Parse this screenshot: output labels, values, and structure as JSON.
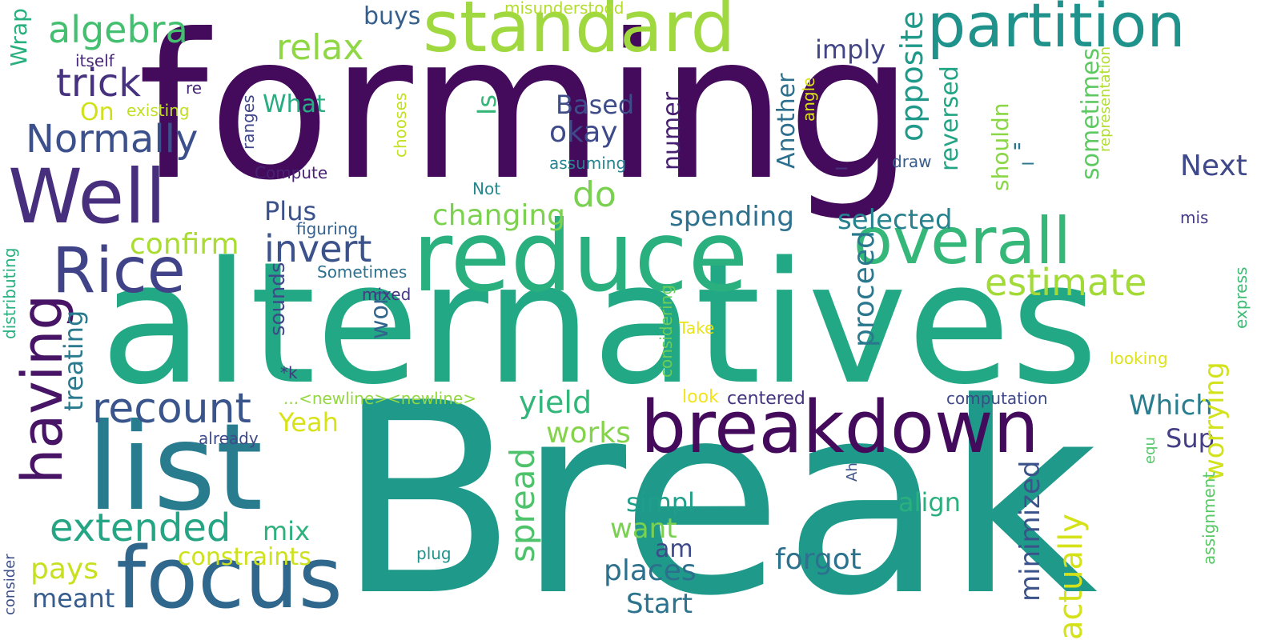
{
  "words": [
    {
      "text": "forming",
      "color": "#440b5c",
      "vertical": false
    },
    {
      "text": "Break",
      "color": "#1f9a8a",
      "vertical": false
    },
    {
      "text": "alternatives",
      "color": "#22a884",
      "vertical": false
    },
    {
      "text": "reduce",
      "color": "#2ab07f",
      "vertical": false
    },
    {
      "text": "breakdown",
      "color": "#440b5c",
      "vertical": false
    },
    {
      "text": "standard",
      "color": "#9fd83f",
      "vertical": false
    },
    {
      "text": "list",
      "color": "#297b8e",
      "vertical": false
    },
    {
      "text": "Well",
      "color": "#472f7d",
      "vertical": false
    },
    {
      "text": "partition",
      "color": "#20928c",
      "vertical": false
    },
    {
      "text": "overall",
      "color": "#35b779",
      "vertical": false
    },
    {
      "text": "focus",
      "color": "#30678d",
      "vertical": false
    },
    {
      "text": "Rice",
      "color": "#404387",
      "vertical": false
    },
    {
      "text": "having",
      "color": "#471466",
      "vertical": true
    },
    {
      "text": "extended",
      "color": "#25a584",
      "vertical": false
    },
    {
      "text": "recount",
      "color": "#39558c",
      "vertical": false
    },
    {
      "text": "estimate",
      "color": "#a2da37",
      "vertical": false
    },
    {
      "text": "algebra",
      "color": "#44bf70",
      "vertical": false
    },
    {
      "text": "Normally",
      "color": "#3c508b",
      "vertical": false
    },
    {
      "text": "trick",
      "color": "#46327e",
      "vertical": false
    },
    {
      "text": "relax",
      "color": "#8fd744",
      "vertical": false
    },
    {
      "text": "invert",
      "color": "#3b528b",
      "vertical": false
    },
    {
      "text": "spread",
      "color": "#4ec36b",
      "vertical": true
    },
    {
      "text": "do",
      "color": "#7ad151",
      "vertical": false
    },
    {
      "text": "changing",
      "color": "#7cd250",
      "vertical": false
    },
    {
      "text": "confirm",
      "color": "#aadc32",
      "vertical": false
    },
    {
      "text": "spending",
      "color": "#2d718e",
      "vertical": false
    },
    {
      "text": "selected",
      "color": "#26828e",
      "vertical": false
    },
    {
      "text": "forgot",
      "color": "#2c728e",
      "vertical": false
    },
    {
      "text": "places",
      "color": "#2d708e",
      "vertical": false
    },
    {
      "text": "treating",
      "color": "#297a8e",
      "vertical": true
    },
    {
      "text": "yield",
      "color": "#32b67a",
      "vertical": false
    },
    {
      "text": "works",
      "color": "#84d44b",
      "vertical": false
    },
    {
      "text": "constraints",
      "color": "#cde11d",
      "vertical": false
    },
    {
      "text": "meant",
      "color": "#365d8d",
      "vertical": false
    },
    {
      "text": "pays",
      "color": "#c8e020",
      "vertical": false
    },
    {
      "text": "mix",
      "color": "#2db27d",
      "vertical": false
    },
    {
      "text": "want",
      "color": "#7ad151",
      "vertical": false
    },
    {
      "text": "am",
      "color": "#3e4a89",
      "vertical": false
    },
    {
      "text": "Start",
      "color": "#2c738e",
      "vertical": false
    },
    {
      "text": "simpl",
      "color": "#1f9e89",
      "vertical": false
    },
    {
      "text": "align",
      "color": "#2ab07f",
      "vertical": false
    },
    {
      "text": "Which",
      "color": "#287d8e",
      "vertical": false
    },
    {
      "text": "Sup",
      "color": "#433e85",
      "vertical": false
    },
    {
      "text": "Next",
      "color": "#3f4889",
      "vertical": false
    },
    {
      "text": "okay",
      "color": "#3e4a89",
      "vertical": false
    },
    {
      "text": "Based",
      "color": "#3e4c8a",
      "vertical": false
    },
    {
      "text": "What",
      "color": "#26ad81",
      "vertical": false
    },
    {
      "text": "Plus",
      "color": "#3b518b",
      "vertical": false
    },
    {
      "text": "Yeah",
      "color": "#d8e219",
      "vertical": false
    },
    {
      "text": "buys",
      "color": "#355f8d",
      "vertical": false
    },
    {
      "text": "imply",
      "color": "#414487",
      "vertical": false
    },
    {
      "text": "On",
      "color": "#d0e11c",
      "vertical": false
    },
    {
      "text": "Is",
      "color": "#35b779",
      "vertical": true
    },
    {
      "text": "numer",
      "color": "#482071",
      "vertical": true
    },
    {
      "text": "Another",
      "color": "#2e6f8e",
      "vertical": true
    },
    {
      "text": "opposite",
      "color": "#1f9a8a",
      "vertical": true
    },
    {
      "text": "reversed",
      "color": "#21a585",
      "vertical": true
    },
    {
      "text": "shouldn",
      "color": "#8bd646",
      "vertical": true
    },
    {
      "text": "sometimes",
      "color": "#5ec962",
      "vertical": true
    },
    {
      "text": "worrying",
      "color": "#d2e21b",
      "vertical": true
    },
    {
      "text": "actually",
      "color": "#d5e21a",
      "vertical": true
    },
    {
      "text": "minimized",
      "color": "#3b528b",
      "vertical": true
    },
    {
      "text": "proceed",
      "color": "#2a788e",
      "vertical": true
    },
    {
      "text": "won",
      "color": "#32658e",
      "vertical": true
    },
    {
      "text": "sounds",
      "color": "#3e4989",
      "vertical": true
    },
    {
      "text": "Wrap",
      "color": "#2ab07f",
      "vertical": true
    },
    {
      "text": "itself",
      "color": "#482878",
      "vertical": false
    },
    {
      "text": "re",
      "color": "#482677",
      "vertical": false
    },
    {
      "text": "existing",
      "color": "#c0df25",
      "vertical": false
    },
    {
      "text": "misunderstood",
      "color": "#b2dd2d",
      "vertical": false
    },
    {
      "text": "ranges",
      "color": "#3f4788",
      "vertical": true
    },
    {
      "text": "Compute",
      "color": "#482173",
      "vertical": false
    },
    {
      "text": "chooses",
      "color": "#c5e021",
      "vertical": true
    },
    {
      "text": "angle",
      "color": "#dde318",
      "vertical": true
    },
    {
      "text": "assuming",
      "color": "#25848e",
      "vertical": false
    },
    {
      "text": "Not",
      "color": "#23898e",
      "vertical": false
    },
    {
      "text": "draw",
      "color": "#375b8d",
      "vertical": false
    },
    {
      "text": "representation",
      "color": "#b0dd2f",
      "vertical": true
    },
    {
      "text": "mis",
      "color": "#443983",
      "vertical": false
    },
    {
      "text": "figuring",
      "color": "#34618d",
      "vertical": false
    },
    {
      "text": "Sometimes",
      "color": "#2d718e",
      "vertical": false
    },
    {
      "text": "mixed",
      "color": "#453781",
      "vertical": false
    },
    {
      "text": "Take",
      "color": "#e7e419",
      "vertical": false
    },
    {
      "text": "considering",
      "color": "#6ccd5a",
      "vertical": true
    },
    {
      "text": "looking",
      "color": "#dde318",
      "vertical": false
    },
    {
      "text": "express",
      "color": "#3dbc74",
      "vertical": true
    },
    {
      "text": "distributing",
      "color": "#29af7f",
      "vertical": true
    },
    {
      "text": "*k",
      "color": "#453882",
      "vertical": false
    },
    {
      "text": "...<newline><newline>",
      "color": "#93d741",
      "vertical": false
    },
    {
      "text": "look",
      "color": "#f1e51d",
      "vertical": false
    },
    {
      "text": "centered",
      "color": "#46337e",
      "vertical": false
    },
    {
      "text": "computation",
      "color": "#3f4889",
      "vertical": false
    },
    {
      "text": "already",
      "color": "#3e4a89",
      "vertical": false
    },
    {
      "text": "Ah",
      "color": "#3b528b",
      "vertical": true
    },
    {
      "text": "equ",
      "color": "#54c568",
      "vertical": true
    },
    {
      "text": "assignment",
      "color": "#58c765",
      "vertical": true
    },
    {
      "text": "plug",
      "color": "#21918c",
      "vertical": false
    },
    {
      "text": "consider",
      "color": "#3c4f8a",
      "vertical": true
    },
    {
      "text": "\"_",
      "color": "#2a768e",
      "vertical": false
    },
    {
      "text": "_",
      "color": "#46307e",
      "vertical": false
    }
  ]
}
